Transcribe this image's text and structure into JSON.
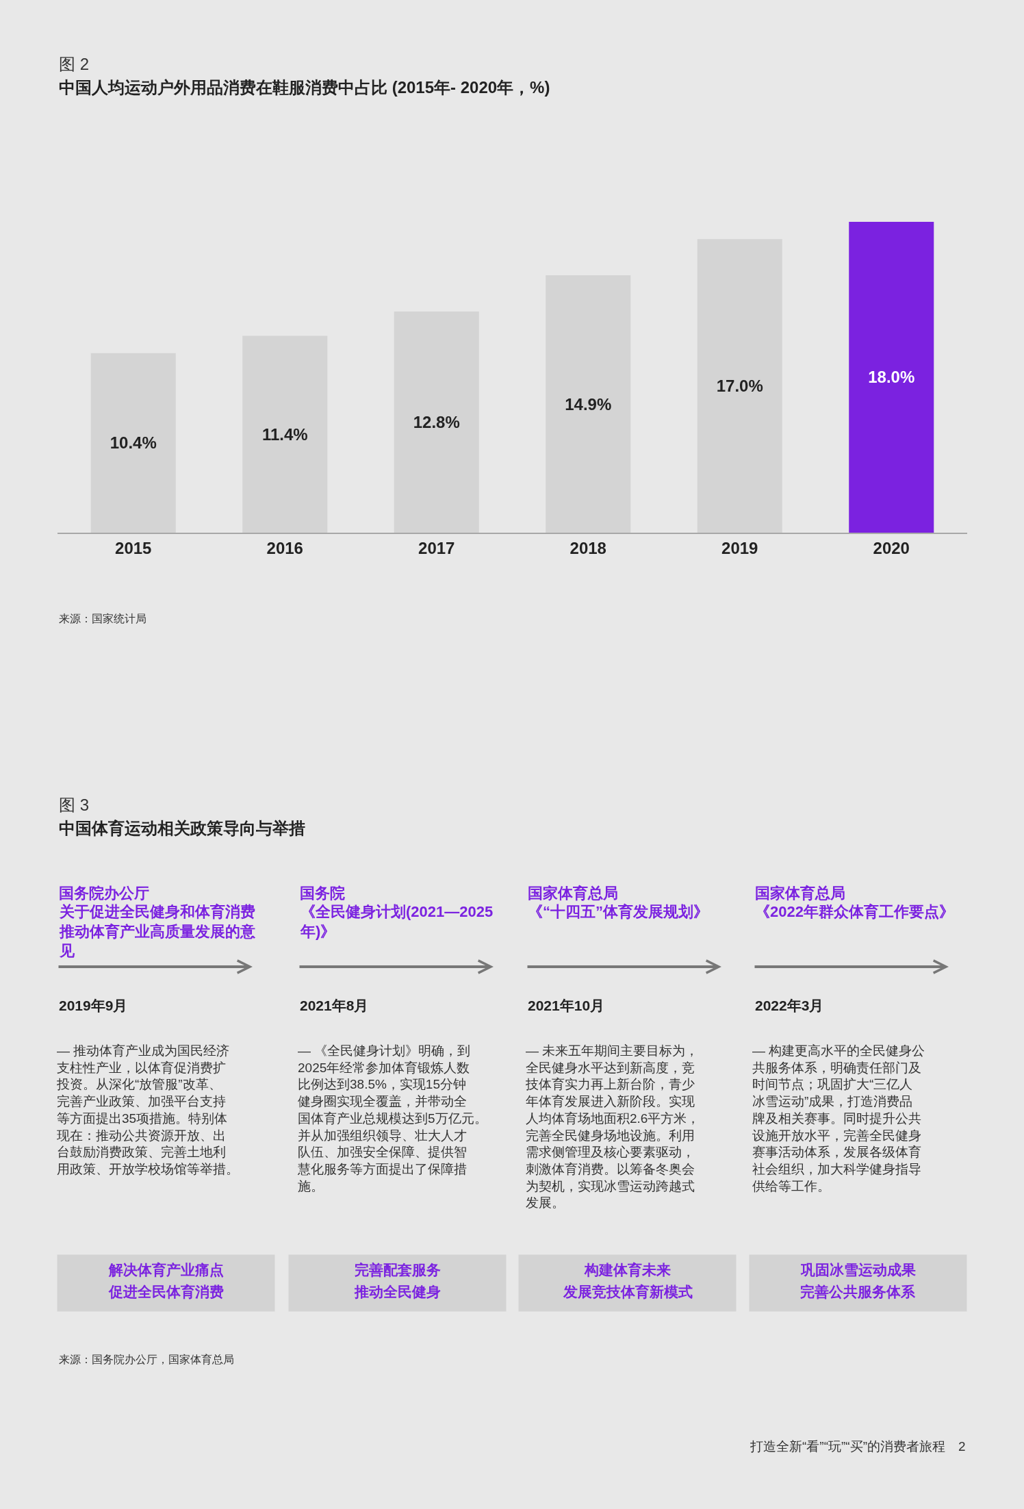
{
  "chart_data": [
    {
      "type": "bar",
      "subtitle": "图 2",
      "title": "中国人均运动户外用品消费在鞋服消费中占比 (2015年- 2020年，%)",
      "categories": [
        "2015",
        "2016",
        "2017",
        "2018",
        "2019",
        "2020"
      ],
      "values": [
        10.4,
        11.4,
        12.8,
        14.9,
        17.0,
        18.0
      ],
      "value_labels": [
        "10.4%",
        "11.4%",
        "12.8%",
        "14.9%",
        "17.0%",
        "18.0%"
      ],
      "colors": [
        "#d4d4d4",
        "#d4d4d4",
        "#d4d4d4",
        "#d4d4d4",
        "#d4d4d4",
        "#7b22e0"
      ],
      "tick_labels": "x",
      "annotations": [
        "来源：国家统计局"
      ]
    },
    {
      "type": "other",
      "subtitle": "图 3",
      "title": "中国体育运动相关政策导向与举措",
      "annotations": [
        "国务院办公厅",
        "国务院",
        "国家体育总局",
        "国家体育总局",
        "关于促进全民健身和体育消费推动体育产业高质量发展的意见",
        "《全民健身计划(2021—2025年)》",
        "《“十四五”体育发展规划》",
        "《2022年群众体育工作要点》",
        "2019年9月",
        "2021年8月",
        "2021年10月",
        "2022年3月",
        "— 推动体育产业成为国民经济支柱性产业，以体育促消费扩投资。从深化“放管服”改革、完善产业政策、加强平台支持等方面提出35项措施。特别体现在：推动公共资源开放、出台鼓励消费政策、完善土地利用政策、开放学校场馆等举措。",
        "— 《全民健身计划》明确，到2025年经常参加体育锻炼人数比例达到38.5%，实现15分钟健身圈实现全覆盖，并带动全国体育产业总规模达到5万亿元。并从加强组织领导、壮大人才队伍、加强安全保障、提供智慧化服务等方面提出了保障措施。",
        "— 未来五年期间主要目标为，全民健身水平达到新高度，竞技体育实力再上新台阶，青少年体育发展进入新阶段。实现人均体育场地面积2.6平方米，完善全民健身场地设施。利用需求侧管理及核心要素驱动，刺激体育消费。以筹备冬奥会为契机，实现冰雪运动跨越式发展。",
        "— 构建更高水平的全民健身公共服务体系，明确责任部门及时间节点；巩固扩大“三亿人冰雪运动”成果，打造消费品牌及相关赛事。同时提升公共设施开放水平，完善全民健身赛事活动体系，发展各级体育社会组织，加大科学健身指导供给等工作。",
        "解决体育产业痛点",
        "完善配套服务",
        "构建体育未来",
        "巩固冰雪运动成果",
        "促进全民体育消费",
        "推动全民健身",
        "发展竞技体育新模式",
        "完善公共服务体系",
        "来源：国务院办公厅，国家体育总局",
        "打造全新“看”“玩”“买”的消费者旅程　2"
      ]
    }
  ]
}
